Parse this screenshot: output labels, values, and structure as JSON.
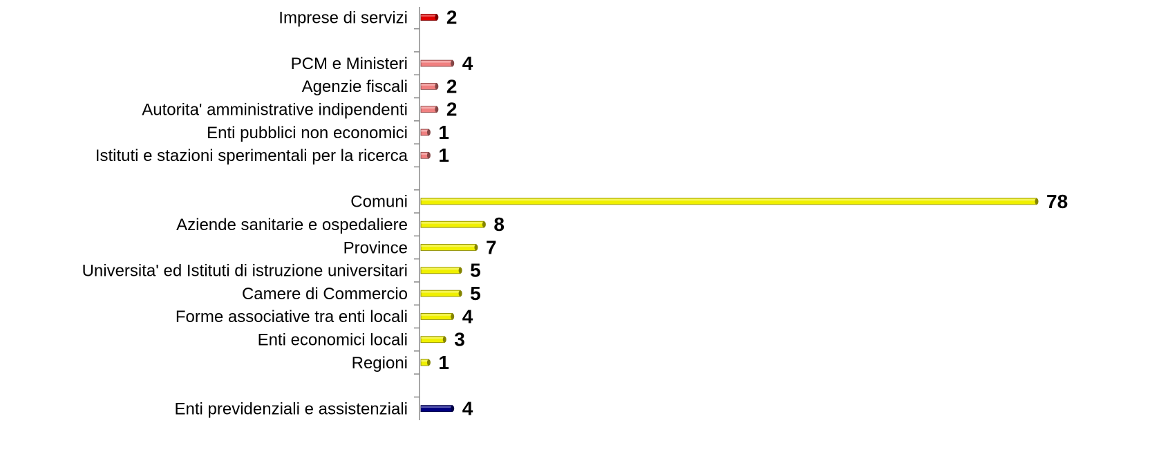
{
  "chart_data": {
    "type": "bar",
    "orientation": "horizontal",
    "categories": [
      "Imprese di servizi",
      null,
      "PCM e Ministeri",
      "Agenzie fiscali",
      "Autorita' amministrative indipendenti",
      "Enti pubblici non economici",
      "Istituti e stazioni sperimentali per la ricerca",
      null,
      "Comuni",
      "Aziende sanitarie e ospedaliere",
      "Province",
      "Universita' ed Istituti di istruzione universitari",
      "Camere di Commercio",
      "Forme associative tra enti locali",
      "Enti economici locali",
      "Regioni",
      null,
      "Enti previdenziali e assistenziali"
    ],
    "values": [
      2,
      null,
      4,
      2,
      2,
      1,
      1,
      null,
      78,
      8,
      7,
      5,
      5,
      4,
      3,
      1,
      null,
      4
    ],
    "colors": [
      "#e00000",
      null,
      "#f08080",
      "#f08080",
      "#f08080",
      "#f08080",
      "#f08080",
      null,
      "#f0f000",
      "#f0f000",
      "#f0f000",
      "#f0f000",
      "#f0f000",
      "#f0f000",
      "#f0f000",
      "#f0f000",
      null,
      "#000080"
    ]
  }
}
